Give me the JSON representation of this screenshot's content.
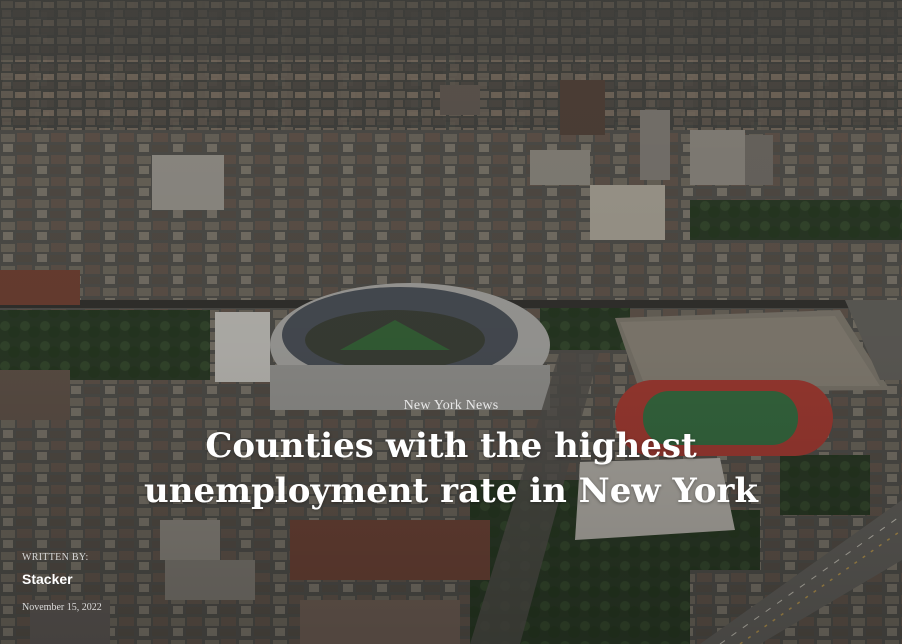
{
  "article": {
    "category": "New York News",
    "title_line1": "Counties with the highest",
    "title_line2": "unemployment rate in New York",
    "written_by_label": "WRITTEN BY:",
    "author": "Stacker",
    "date": "November 15, 2022"
  },
  "colors": {
    "overlay": "#000000",
    "text": "#ffffff",
    "track": "#b8443a",
    "field": "#3f7a4a"
  }
}
